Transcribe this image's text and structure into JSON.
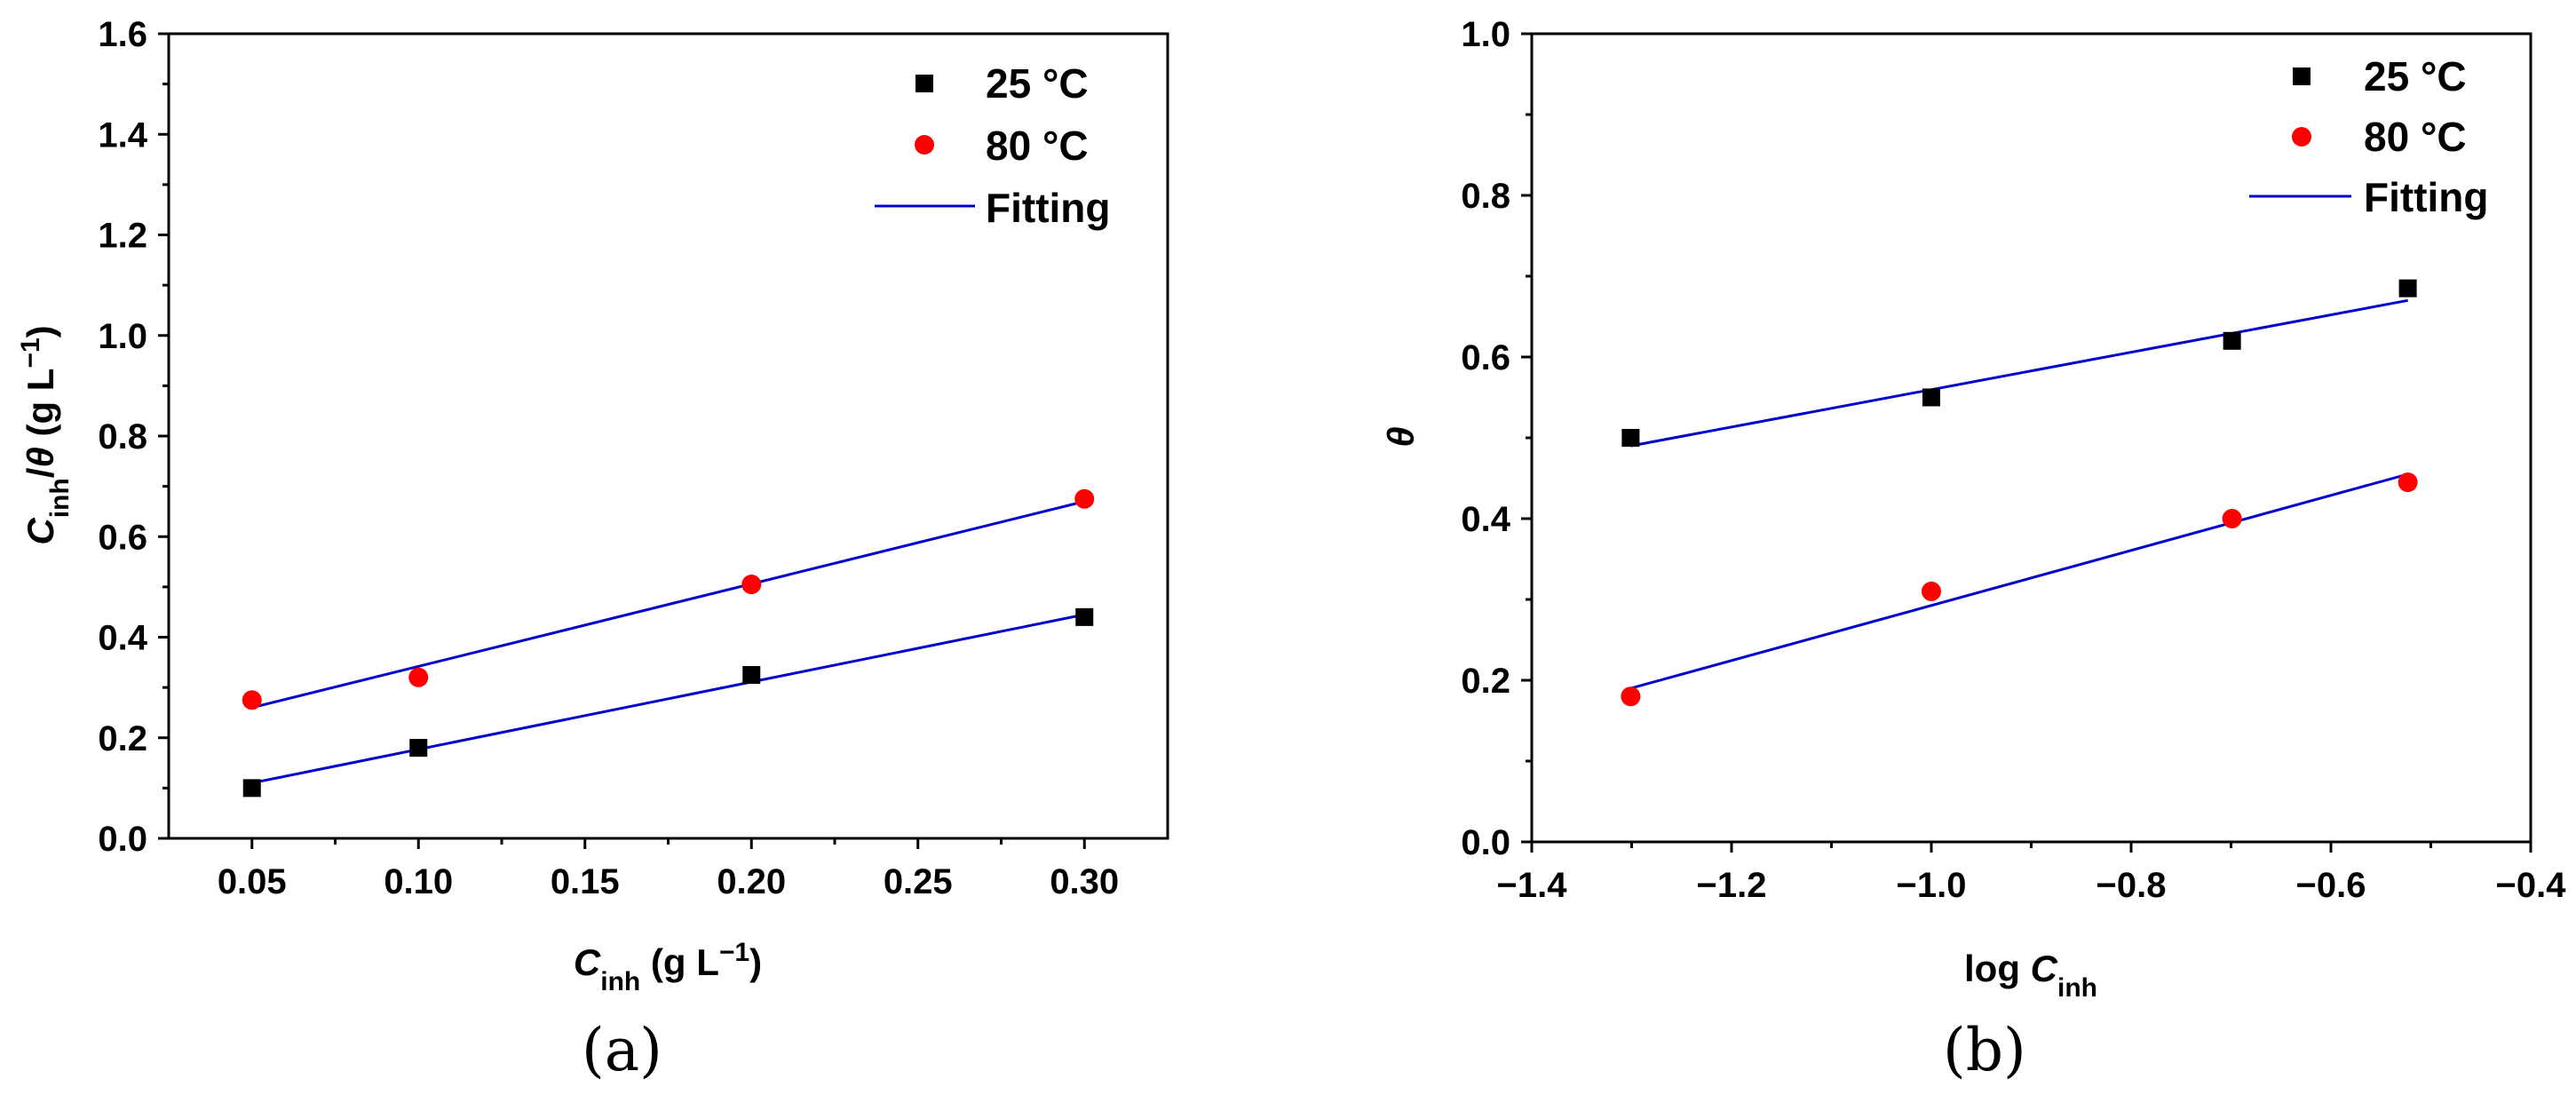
{
  "chart_data": [
    {
      "type": "scatter",
      "panel_label": "(a)",
      "xlim": [
        0.025,
        0.325
      ],
      "ylim": [
        0.0,
        1.6
      ],
      "xticks": [
        "0.05",
        "0.10",
        "0.15",
        "0.20",
        "0.25",
        "0.30"
      ],
      "xtick_values": [
        0.05,
        0.1,
        0.15,
        0.2,
        0.25,
        0.3
      ],
      "yticks": [
        "0.0",
        "0.2",
        "0.4",
        "0.6",
        "0.8",
        "1.0",
        "1.2",
        "1.4",
        "1.6"
      ],
      "ytick_values": [
        0.0,
        0.2,
        0.4,
        0.6,
        0.8,
        1.0,
        1.2,
        1.4,
        1.6
      ],
      "xlabel": {
        "main": "C",
        "sub": "inh",
        "rest": " (g L",
        "sup": "−1",
        "end": ")"
      },
      "ylabel": {
        "main": "C",
        "sub": "inh",
        "mid": "/",
        "theta": "θ",
        "rest": " (g L",
        "sup": "−1",
        "end": ")"
      },
      "legend": [
        {
          "label": "25 °C",
          "marker": "square",
          "color": "#000000"
        },
        {
          "label": "80 °C",
          "marker": "circle",
          "color": "#ff0000"
        },
        {
          "label": "Fitting",
          "marker": "line",
          "color": "#0000cc"
        }
      ],
      "series": [
        {
          "name": "25 °C",
          "marker": "square",
          "color": "#000000",
          "x": [
            0.05,
            0.1,
            0.2,
            0.3
          ],
          "y": [
            0.1,
            0.18,
            0.325,
            0.44
          ]
        },
        {
          "name": "80 °C",
          "marker": "circle",
          "color": "#ff0000",
          "x": [
            0.05,
            0.1,
            0.2,
            0.3
          ],
          "y": [
            0.275,
            0.32,
            0.505,
            0.675
          ]
        }
      ],
      "fits": [
        {
          "name": "Fitting 25 °C",
          "x": [
            0.05,
            0.3
          ],
          "y": [
            0.11,
            0.445
          ]
        },
        {
          "name": "Fitting 80 °C",
          "x": [
            0.05,
            0.3
          ],
          "y": [
            0.26,
            0.67
          ]
        }
      ]
    },
    {
      "type": "scatter",
      "panel_label": "(b)",
      "xlim": [
        -1.4,
        -0.4
      ],
      "ylim": [
        0.0,
        1.0
      ],
      "xticks": [
        "−1.4",
        "−1.2",
        "−1.0",
        "−0.8",
        "−0.6",
        "−0.4"
      ],
      "xtick_values": [
        -1.4,
        -1.2,
        -1.0,
        -0.8,
        -0.6,
        -0.4
      ],
      "yticks": [
        "0.0",
        "0.2",
        "0.4",
        "0.6",
        "0.8",
        "1.0"
      ],
      "ytick_values": [
        0.0,
        0.2,
        0.4,
        0.6,
        0.8,
        1.0
      ],
      "xlabel": {
        "pre": "log ",
        "main": "C",
        "sub": "inh"
      },
      "ylabel": {
        "theta": "θ"
      },
      "legend": [
        {
          "label": "25 °C",
          "marker": "square",
          "color": "#000000"
        },
        {
          "label": "80 °C",
          "marker": "circle",
          "color": "#ff0000"
        },
        {
          "label": "Fitting",
          "marker": "line",
          "color": "#0000cc"
        }
      ],
      "series": [
        {
          "name": "25 °C",
          "marker": "square",
          "color": "#000000",
          "x": [
            -1.301,
            -1.0,
            -0.699,
            -0.523
          ],
          "y": [
            0.5,
            0.55,
            0.62,
            0.685
          ]
        },
        {
          "name": "80 °C",
          "marker": "circle",
          "color": "#ff0000",
          "x": [
            -1.301,
            -1.0,
            -0.699,
            -0.523
          ],
          "y": [
            0.18,
            0.31,
            0.4,
            0.445
          ]
        }
      ],
      "fits": [
        {
          "name": "Fitting 25 °C",
          "x": [
            -1.301,
            -0.523
          ],
          "y": [
            0.49,
            0.67
          ]
        },
        {
          "name": "Fitting 80 °C",
          "x": [
            -1.301,
            -0.523
          ],
          "y": [
            0.19,
            0.455
          ]
        }
      ]
    }
  ]
}
